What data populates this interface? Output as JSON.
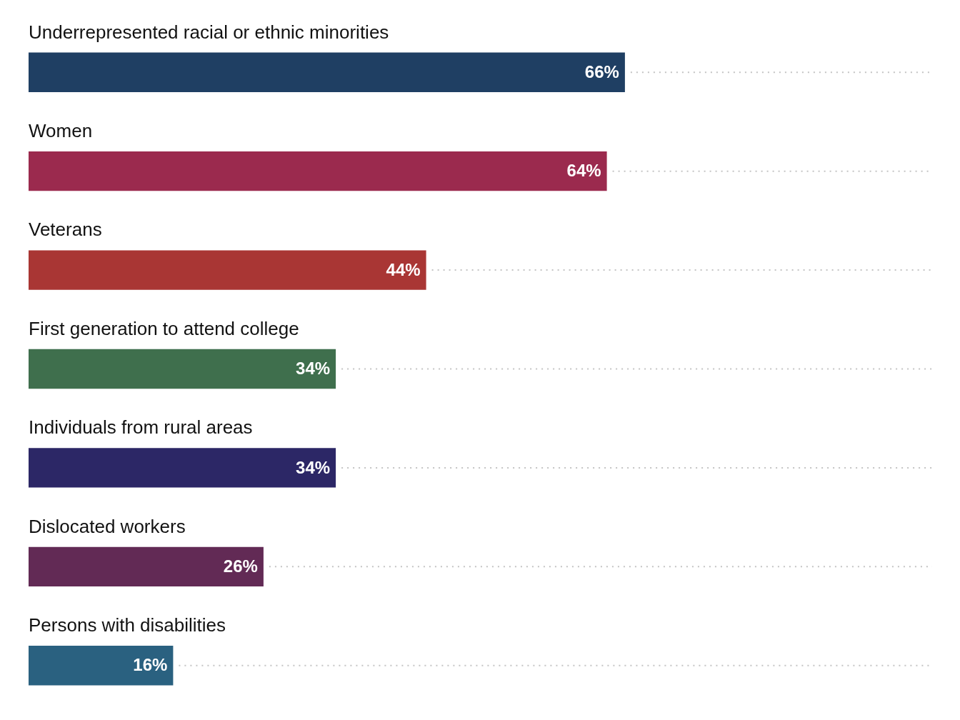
{
  "chart_data": {
    "type": "bar",
    "orientation": "horizontal",
    "categories": [
      "Underrepresented racial or ethnic minorities",
      "Women",
      "Veterans",
      "First generation to attend college",
      "Individuals from rural areas",
      "Dislocated workers",
      "Persons with disabilities"
    ],
    "values": [
      66,
      64,
      44,
      34,
      34,
      26,
      16
    ],
    "value_labels": [
      "66%",
      "64%",
      "44%",
      "34%",
      "34%",
      "26%",
      "16%"
    ],
    "colors": [
      "#1f3f63",
      "#9b2a4e",
      "#a93634",
      "#3f6f4d",
      "#2c2766",
      "#622a55",
      "#2a6180"
    ],
    "xlim": [
      0,
      100
    ],
    "grid": false,
    "data_labels": true,
    "tick_labels": "y"
  }
}
